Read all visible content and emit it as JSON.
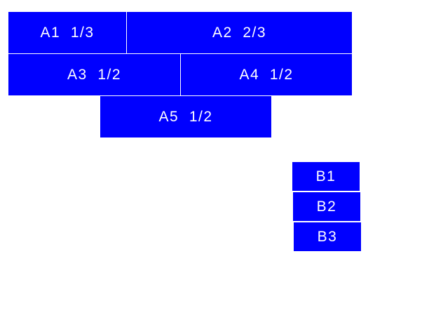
{
  "colors": {
    "box": "#0000ff",
    "text": "#ffffff"
  },
  "group_a": [
    {
      "label": "A1  1/3"
    },
    {
      "label": "A2  2/3"
    },
    {
      "label": "A3  1/2"
    },
    {
      "label": "A4  1/2"
    },
    {
      "label": "A5  1/2"
    }
  ],
  "group_b": [
    {
      "label": "B1"
    },
    {
      "label": "B2"
    },
    {
      "label": "B3"
    }
  ]
}
